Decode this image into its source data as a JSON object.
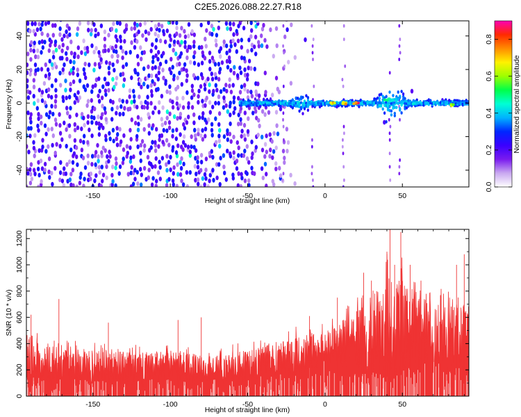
{
  "title": "C2E5.2026.088.22.27.R18",
  "chart_data": [
    {
      "type": "heatmap",
      "xlabel": "Height of straight line (km)",
      "ylabel": "Frequency (Hz)",
      "xlim": [
        -193,
        93
      ],
      "ylim": [
        -50,
        49
      ],
      "xticks": [
        -150,
        -100,
        -50,
        0,
        50
      ],
      "yticks": [
        -40,
        -20,
        0,
        20,
        40
      ],
      "color_scale": "rainbow",
      "colorbar": {
        "label": "Normalized spectral amplitude",
        "range": [
          0,
          0.9
        ],
        "ticks": [
          "0.0",
          "0.2",
          "0.4",
          "0.6",
          "0.8"
        ],
        "colors": [
          "#ffffff",
          "#c9a8f0",
          "#7a1bef",
          "#3a00ff",
          "#0026ff",
          "#00b3ff",
          "#00ffd5",
          "#00ff4a",
          "#9dff00",
          "#fff200",
          "#ff8c00",
          "#ff2a00",
          "#ff00b4"
        ]
      },
      "features": {
        "noise_region_x": [
          -193,
          -50
        ],
        "signal_band_center_hz": 0,
        "signal_band_x": [
          -55,
          93
        ],
        "bursts": [
          {
            "x": -15,
            "width_hz": 7
          },
          {
            "x": 40,
            "width_hz": 17
          },
          {
            "x": 47,
            "width_hz": 13
          }
        ],
        "peak_points": [
          {
            "x": 5,
            "y": 0,
            "value": 0.85
          },
          {
            "x": 12,
            "y": 0,
            "value": 0.8
          },
          {
            "x": 20,
            "y": 0,
            "value": 0.9
          },
          {
            "x": 40,
            "y": 2,
            "value": 0.55
          },
          {
            "x": 58,
            "y": 0,
            "value": 0.5
          },
          {
            "x": 82,
            "y": -1,
            "value": 0.7
          }
        ]
      }
    },
    {
      "type": "area",
      "xlabel": "Height of straight line (km)",
      "ylabel": "SNR (10 * v/v)",
      "xlim": [
        -193,
        93
      ],
      "ylim": [
        0,
        1270
      ],
      "xticks": [
        -150,
        -100,
        -50,
        0,
        50
      ],
      "yticks": [
        0,
        200,
        400,
        600,
        800,
        1000,
        1200
      ],
      "series_color": "#ef3333",
      "envelope": {
        "x": [
          -193,
          -170,
          -150,
          -120,
          -100,
          -80,
          -60,
          -50,
          -40,
          -30,
          -20,
          -10,
          0,
          10,
          20,
          30,
          40,
          50,
          60,
          70,
          80,
          93
        ],
        "upper": [
          420,
          360,
          340,
          330,
          340,
          320,
          330,
          360,
          390,
          420,
          440,
          480,
          480,
          560,
          640,
          760,
          880,
          880,
          760,
          700,
          680,
          700
        ],
        "lower": [
          130,
          120,
          120,
          120,
          120,
          120,
          120,
          130,
          140,
          150,
          160,
          200,
          250,
          230,
          200,
          180,
          170,
          180,
          220,
          240,
          220,
          230
        ]
      },
      "spikes": [
        {
          "x": -190,
          "y": 620
        },
        {
          "x": -172,
          "y": 740
        },
        {
          "x": -140,
          "y": 560
        },
        {
          "x": -95,
          "y": 580
        },
        {
          "x": -80,
          "y": 600
        },
        {
          "x": -10,
          "y": 610
        },
        {
          "x": 8,
          "y": 750
        },
        {
          "x": 25,
          "y": 940
        },
        {
          "x": 30,
          "y": 880
        },
        {
          "x": 40,
          "y": 1100
        },
        {
          "x": 42,
          "y": 1270
        },
        {
          "x": 45,
          "y": 1000
        },
        {
          "x": 49,
          "y": 1250
        },
        {
          "x": 55,
          "y": 1000
        },
        {
          "x": 62,
          "y": 880
        },
        {
          "x": 85,
          "y": 1000
        },
        {
          "x": 90,
          "y": 1080
        }
      ]
    }
  ]
}
